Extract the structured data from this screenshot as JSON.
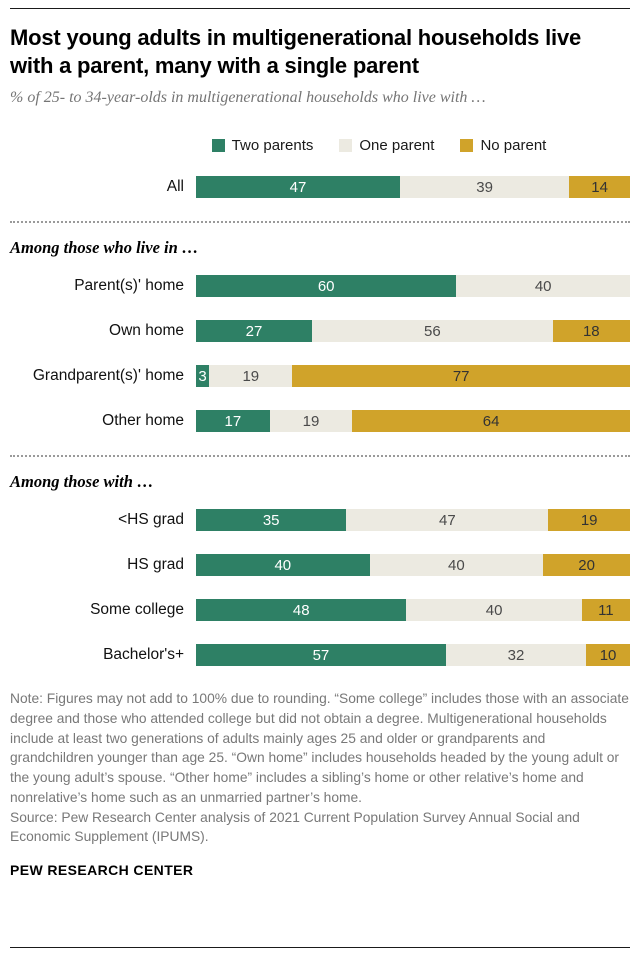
{
  "header": {
    "title": "Most young adults in multigenerational households live with a parent, many with a single parent",
    "subtitle": "% of 25- to 34-year-olds in multigenerational households who live with …"
  },
  "chart_data": {
    "type": "bar",
    "orientation": "horizontal",
    "stacked": true,
    "legend": [
      "Two parents",
      "One parent",
      "No parent"
    ],
    "series_colors": [
      "#2E8065",
      "#ECEAE1",
      "#D0A32A"
    ],
    "value_text_colors": [
      "#FFFFFF",
      "#4A4A4A",
      "#333333"
    ],
    "axis": {
      "unit": "%",
      "range": [
        0,
        100
      ],
      "gridlines": false
    },
    "groups": [
      {
        "header": "",
        "rows": [
          {
            "label": "All",
            "values": [
              47,
              39,
              14
            ]
          }
        ]
      },
      {
        "header": "Among those who live in …",
        "rows": [
          {
            "label": "Parent(s)' home",
            "values": [
              60,
              40,
              0
            ]
          },
          {
            "label": "Own home",
            "values": [
              27,
              56,
              18
            ]
          },
          {
            "label": "Grandparent(s)' home",
            "values": [
              3,
              19,
              77
            ]
          },
          {
            "label": "Other home",
            "values": [
              17,
              19,
              64
            ]
          }
        ]
      },
      {
        "header": "Among those with …",
        "rows": [
          {
            "label": "<HS grad",
            "values": [
              35,
              47,
              19
            ]
          },
          {
            "label": "HS grad",
            "values": [
              40,
              40,
              20
            ]
          },
          {
            "label": "Some college",
            "values": [
              48,
              40,
              11
            ]
          },
          {
            "label": "Bachelor's+",
            "values": [
              57,
              32,
              10
            ]
          }
        ]
      }
    ]
  },
  "footer": {
    "note": "Note: Figures may not add to 100% due to rounding. “Some college” includes those with an associate degree and those who attended college but did not obtain a degree. Multigenerational households include at least two generations of adults mainly ages 25 and older or grandparents and grandchildren younger than age 25. “Own home” includes households headed by the young adult or the young adult’s spouse. “Other home” includes a sibling’s home or other relative’s home and nonrelative’s home such as an unmarried partner’s home.",
    "source": "Source: Pew Research Center analysis of 2021 Current Population Survey Annual Social and Economic Supplement (IPUMS).",
    "brand": "PEW RESEARCH CENTER"
  }
}
